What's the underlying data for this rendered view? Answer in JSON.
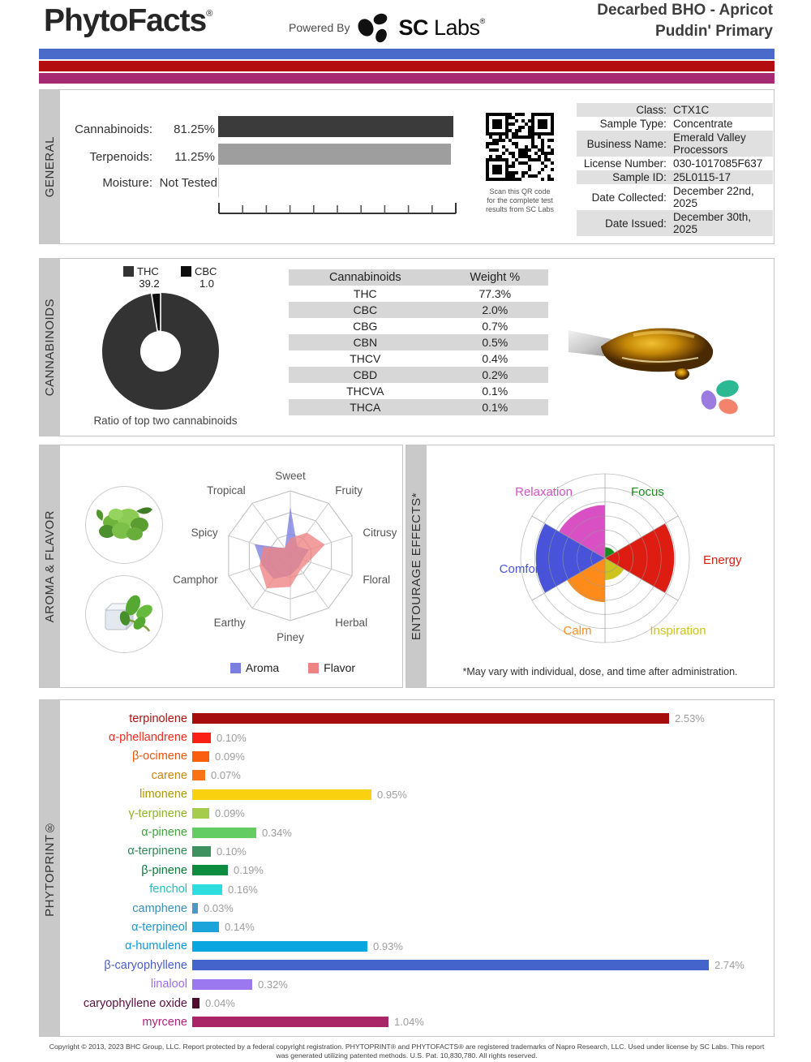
{
  "header": {
    "brand": "PhytoFacts",
    "brand_reg": "®",
    "powered_by": "Powered By",
    "lab_sc": "SC",
    "lab_labs": " Labs",
    "lab_reg": "®",
    "title_line1": "Decarbed BHO - Apricot",
    "title_line2": "Puddin' Primary",
    "stripe_colors": [
      "#4a6bc9",
      "#b30d10",
      "#a62a72"
    ]
  },
  "general": {
    "section_label": "GENERAL",
    "rows": [
      {
        "label": "Cannabinoids:",
        "value": "81.25%",
        "bar_color": "#3b3b3b"
      },
      {
        "label": "Terpenoids:",
        "value": "11.25%",
        "bar_color": "#9e9e9e"
      },
      {
        "label": "Moisture:",
        "value": "Not Tested"
      }
    ],
    "qr_caption_lines": [
      "Scan this QR code",
      "for the complete test",
      "results from SC Labs"
    ],
    "info_table": [
      {
        "label": "Class:",
        "value": "CTX1C"
      },
      {
        "label": "Sample Type:",
        "value": "Concentrate"
      },
      {
        "label": "Business Name:",
        "value": "Emerald Valley Processors"
      },
      {
        "label": "License Number:",
        "value": "030-1017085F637"
      },
      {
        "label": "Sample ID:",
        "value": "25L0115-17"
      },
      {
        "label": "Date Collected:",
        "value": "December 22nd, 2025"
      },
      {
        "label": "Date Issued:",
        "value": "December 30th, 2025"
      }
    ]
  },
  "cannabinoids": {
    "section_label": "CANNABINOIDS",
    "caption": "Ratio of top two cannabinoids",
    "table_headers": [
      "Cannabinoids",
      "Weight %"
    ],
    "table_rows": [
      [
        "THC",
        "77.3%"
      ],
      [
        "CBC",
        "2.0%"
      ],
      [
        "CBG",
        "0.7%"
      ],
      [
        "CBN",
        "0.5%"
      ],
      [
        "THCV",
        "0.4%"
      ],
      [
        "CBD",
        "0.2%"
      ],
      [
        "THCVA",
        "0.1%"
      ],
      [
        "THCA",
        "0.1%"
      ]
    ]
  },
  "aroma_flavor": {
    "section_label": "AROMA & FLAVOR",
    "legend": [
      {
        "name": "Aroma",
        "color": "#7b7fe0"
      },
      {
        "name": "Flavor",
        "color": "#ee8383"
      }
    ]
  },
  "entourage": {
    "section_label": "ENTOURAGE EFFECTS*",
    "footnote": "*May vary with individual, dose, and time after administration."
  },
  "phytoprint": {
    "section_label": "PHYTOPRINT®"
  },
  "footer": {
    "line1": "Copyright © 2013, 2023 BHC Group, LLC. Report protected by a federal copyright registration. PHYTOPRINT® and PHYTOFACTS® are registered trademarks of Napro Research, LLC. Used under license by SC Labs. This report",
    "line2": "was generated utilizing patented methods. U.S. Pat. 10,830,780. All rights reserved."
  },
  "chart_data": [
    {
      "id": "cannabinoid-ratio-donut",
      "type": "pie",
      "title": "Ratio of top two cannabinoids",
      "categories": [
        "THC",
        "CBC"
      ],
      "values": [
        39.2,
        1.0
      ],
      "colors": [
        "#333333",
        "#0d0d0d"
      ]
    },
    {
      "id": "aroma-flavor-radar",
      "type": "radar",
      "categories": [
        "Sweet",
        "Fruity",
        "Citrusy",
        "Floral",
        "Herbal",
        "Piney",
        "Earthy",
        "Camphor",
        "Spicy",
        "Tropical"
      ],
      "series": [
        {
          "name": "Aroma",
          "color": "#7b7fe0",
          "values": [
            0.76,
            0.18,
            0.3,
            0.2,
            0.22,
            0.3,
            0.44,
            0.46,
            0.58,
            0.14
          ]
        },
        {
          "name": "Flavor",
          "color": "#ee8383",
          "values": [
            0.27,
            0.44,
            0.56,
            0.3,
            0.27,
            0.48,
            0.62,
            0.5,
            0.44,
            0.15
          ]
        }
      ],
      "scale_max": 1,
      "rings": 3,
      "legend_position": "bottom"
    },
    {
      "id": "entourage-effects-polar",
      "type": "polar-sector",
      "categories": [
        "Relaxation",
        "Focus",
        "Energy",
        "Inspiration",
        "Calm",
        "Comfort"
      ],
      "values": [
        0.63,
        0.13,
        0.82,
        0.26,
        0.52,
        0.82
      ],
      "colors": [
        "#d94fc4",
        "#1a8a1a",
        "#dd1d11",
        "#cfc31d",
        "#ff8c1a",
        "#4853d9"
      ],
      "start_angles_deg_clockwise_from_top": [
        -60,
        0,
        60,
        120,
        180,
        240
      ],
      "rings": 6,
      "footnote": "*May vary with individual, dose, and time after administration."
    },
    {
      "id": "phytoprint-terpenes",
      "type": "bar",
      "orientation": "horizontal",
      "xlim": [
        0,
        2.9
      ],
      "categories": [
        "terpinolene",
        "α-phellandrene",
        "β-ocimene",
        "carene",
        "limonene",
        "γ-terpinene",
        "α-pinene",
        "α-terpinene",
        "β-pinene",
        "fenchol",
        "camphene",
        "α-terpineol",
        "α-humulene",
        "β-caryophyllene",
        "linalool",
        "caryophyllene oxide",
        "myrcene"
      ],
      "values": [
        2.53,
        0.1,
        0.09,
        0.07,
        0.95,
        0.09,
        0.34,
        0.1,
        0.19,
        0.16,
        0.03,
        0.14,
        0.93,
        2.74,
        0.32,
        0.04,
        1.04
      ],
      "value_labels": [
        "2.53%",
        "0.10%",
        "0.09%",
        "0.07%",
        "0.95%",
        "0.09%",
        "0.34%",
        "0.10%",
        "0.19%",
        "0.16%",
        "0.03%",
        "0.14%",
        "0.93%",
        "2.74%",
        "0.32%",
        "0.04%",
        "1.04%"
      ],
      "bar_colors": [
        "#a50d0d",
        "#fb2015",
        "#fa5f0f",
        "#f97316",
        "#fad10e",
        "#a6cc4d",
        "#63cc63",
        "#3f9160",
        "#0b8c3f",
        "#2edede",
        "#4a9bc4",
        "#1ba4d9",
        "#0aa6e0",
        "#4464cc",
        "#9b78f0",
        "#4d0d33",
        "#aa2468"
      ],
      "label_colors": [
        "#b11212",
        "#f42a1d",
        "#e85410",
        "#cc860a",
        "#a89a00",
        "#8fb32a",
        "#3ca53c",
        "#2f8a57",
        "#0a7a38",
        "#26bcbc",
        "#3d8fb3",
        "#1a96cc",
        "#0a9ad9",
        "#4a5fc9",
        "#9b6ee8",
        "#5c1040",
        "#b0247a"
      ]
    }
  ]
}
